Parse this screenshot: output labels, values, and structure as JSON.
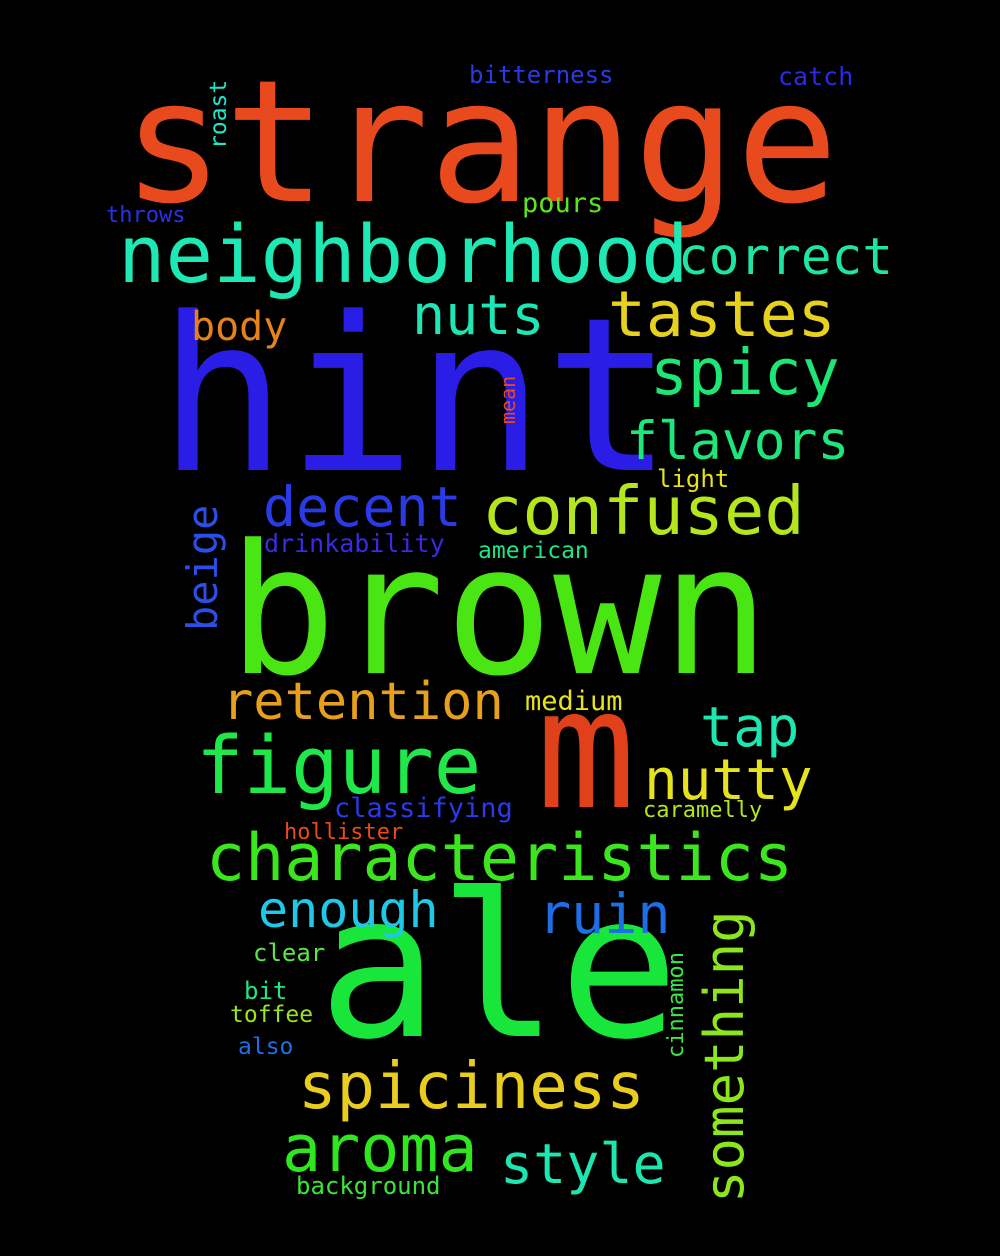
{
  "words": [
    {
      "id": "strange",
      "text": "strange",
      "color": "#e84a1e"
    },
    {
      "id": "hint",
      "text": "hint",
      "color": "#2a1ee6"
    },
    {
      "id": "brown",
      "text": "brown",
      "color": "#4ae614"
    },
    {
      "id": "ale",
      "text": "ale",
      "color": "#18e63a"
    },
    {
      "id": "m",
      "text": "m",
      "color": "#e0401a"
    },
    {
      "id": "neighborhood",
      "text": "neighborhood",
      "color": "#1ee8b4"
    },
    {
      "id": "characteristics",
      "text": "characteristics",
      "color": "#3ce61e"
    },
    {
      "id": "figure",
      "text": "figure",
      "color": "#20e84a"
    },
    {
      "id": "confused",
      "text": "confused",
      "color": "#b4e61e"
    },
    {
      "id": "tastes",
      "text": "tastes",
      "color": "#e6d21e"
    },
    {
      "id": "spiciness",
      "text": "spiciness",
      "color": "#e8cc1e"
    },
    {
      "id": "aroma",
      "text": "aroma",
      "color": "#30e61e"
    },
    {
      "id": "correct",
      "text": "correct",
      "color": "#1ee6a0"
    },
    {
      "id": "spicy",
      "text": "spicy",
      "color": "#1ee674"
    },
    {
      "id": "flavors",
      "text": "flavors",
      "color": "#1ee67a"
    },
    {
      "id": "nuts",
      "text": "nuts",
      "color": "#1ee6b4"
    },
    {
      "id": "decent",
      "text": "decent",
      "color": "#2a3ae6"
    },
    {
      "id": "retention",
      "text": "retention",
      "color": "#e6a01e"
    },
    {
      "id": "nutty",
      "text": "nutty",
      "color": "#e6e21e"
    },
    {
      "id": "tap",
      "text": "tap",
      "color": "#1ee6b0"
    },
    {
      "id": "ruin",
      "text": "ruin",
      "color": "#1e6ee6"
    },
    {
      "id": "enough",
      "text": "enough",
      "color": "#1ec8e6"
    },
    {
      "id": "style",
      "text": "style",
      "color": "#1ee6b0"
    },
    {
      "id": "something",
      "text": "something",
      "color": "#8ce61e"
    },
    {
      "id": "body",
      "text": "body",
      "color": "#e6821e"
    },
    {
      "id": "beige",
      "text": "beige",
      "color": "#2a4ee6"
    },
    {
      "id": "bitterness",
      "text": "bitterness",
      "color": "#2a3ae6"
    },
    {
      "id": "catch",
      "text": "catch",
      "color": "#2a2ae6"
    },
    {
      "id": "roast",
      "text": "roast",
      "color": "#1ee6c8"
    },
    {
      "id": "throws",
      "text": "throws",
      "color": "#2a32e6"
    },
    {
      "id": "pours",
      "text": "pours",
      "color": "#5ae61e"
    },
    {
      "id": "mean",
      "text": "mean",
      "color": "#e64a1e"
    },
    {
      "id": "light",
      "text": "light",
      "color": "#e6e21e"
    },
    {
      "id": "drinkability",
      "text": "drinkability",
      "color": "#3a2ae6"
    },
    {
      "id": "american",
      "text": "american",
      "color": "#1ee682"
    },
    {
      "id": "medium",
      "text": "medium",
      "color": "#e6e21e"
    },
    {
      "id": "classifying",
      "text": "classifying",
      "color": "#2a3ae6"
    },
    {
      "id": "caramelly",
      "text": "caramelly",
      "color": "#b4e61e"
    },
    {
      "id": "hollister",
      "text": "hollister",
      "color": "#e64a1e"
    },
    {
      "id": "clear",
      "text": "clear",
      "color": "#5ae64a"
    },
    {
      "id": "bit",
      "text": "bit",
      "color": "#1ee682"
    },
    {
      "id": "toffee",
      "text": "toffee",
      "color": "#9ae61e"
    },
    {
      "id": "also",
      "text": "also",
      "color": "#1e6ee6"
    },
    {
      "id": "cinnamon",
      "text": "cinnamon",
      "color": "#3ae64a"
    },
    {
      "id": "background",
      "text": "background",
      "color": "#3ae63a"
    }
  ]
}
